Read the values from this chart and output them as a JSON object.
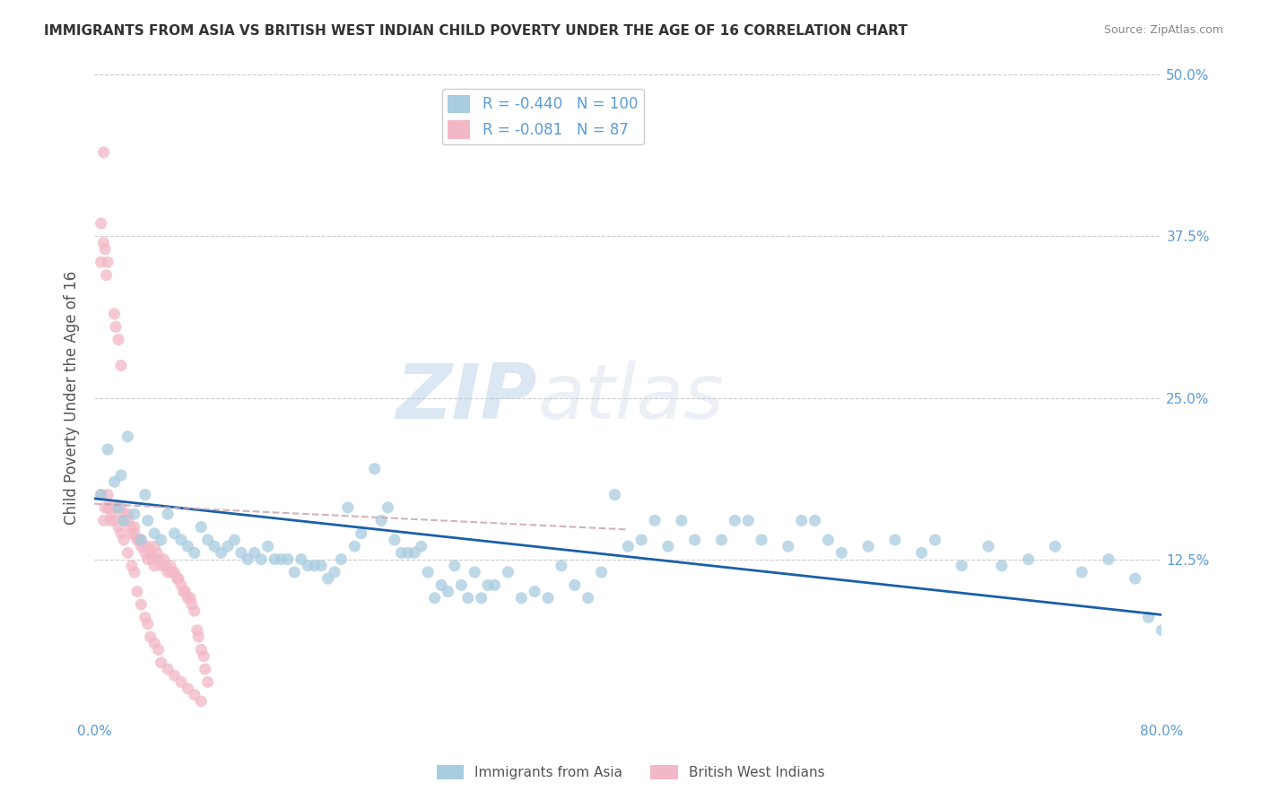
{
  "title": "IMMIGRANTS FROM ASIA VS BRITISH WEST INDIAN CHILD POVERTY UNDER THE AGE OF 16 CORRELATION CHART",
  "source": "Source: ZipAtlas.com",
  "ylabel": "Child Poverty Under the Age of 16",
  "xlim": [
    0,
    0.8
  ],
  "ylim": [
    0,
    0.5
  ],
  "xticks": [
    0.0,
    0.1,
    0.2,
    0.3,
    0.4,
    0.5,
    0.6,
    0.7,
    0.8
  ],
  "xticklabels": [
    "0.0%",
    "",
    "",
    "",
    "",
    "",
    "",
    "",
    "80.0%"
  ],
  "yticks": [
    0.0,
    0.125,
    0.25,
    0.375,
    0.5
  ],
  "yticklabels_right": [
    "",
    "12.5%",
    "25.0%",
    "37.5%",
    "50.0%"
  ],
  "blue_R": -0.44,
  "blue_N": 100,
  "pink_R": -0.081,
  "pink_N": 87,
  "blue_color": "#a8cce0",
  "pink_color": "#f2b8c6",
  "blue_line_color": "#1a5fa8",
  "pink_line_color": "#c8a0a8",
  "legend_label_blue": "Immigrants from Asia",
  "legend_label_pink": "British West Indians",
  "watermark_zip": "ZIP",
  "watermark_atlas": "atlas",
  "grid_color": "#cccccc",
  "title_color": "#333333",
  "axis_color": "#5b9bd5",
  "blue_line_start_y": 0.172,
  "blue_line_end_y": 0.082,
  "pink_line_start_y": 0.168,
  "pink_line_end_x": 0.4,
  "pink_line_end_y": 0.148,
  "blue_scatter_x": [
    0.005,
    0.01,
    0.015,
    0.018,
    0.02,
    0.022,
    0.025,
    0.03,
    0.035,
    0.038,
    0.04,
    0.045,
    0.05,
    0.055,
    0.06,
    0.065,
    0.07,
    0.075,
    0.08,
    0.085,
    0.09,
    0.095,
    0.1,
    0.105,
    0.11,
    0.115,
    0.12,
    0.125,
    0.13,
    0.135,
    0.14,
    0.145,
    0.15,
    0.155,
    0.16,
    0.165,
    0.17,
    0.175,
    0.18,
    0.185,
    0.19,
    0.195,
    0.2,
    0.21,
    0.215,
    0.22,
    0.225,
    0.23,
    0.235,
    0.24,
    0.245,
    0.25,
    0.255,
    0.26,
    0.265,
    0.27,
    0.275,
    0.28,
    0.285,
    0.29,
    0.295,
    0.3,
    0.31,
    0.32,
    0.33,
    0.34,
    0.35,
    0.36,
    0.37,
    0.38,
    0.39,
    0.4,
    0.41,
    0.42,
    0.43,
    0.44,
    0.45,
    0.47,
    0.48,
    0.49,
    0.5,
    0.52,
    0.53,
    0.54,
    0.55,
    0.56,
    0.58,
    0.6,
    0.62,
    0.63,
    0.65,
    0.67,
    0.68,
    0.7,
    0.72,
    0.74,
    0.76,
    0.78,
    0.79,
    0.8
  ],
  "blue_scatter_y": [
    0.175,
    0.21,
    0.185,
    0.165,
    0.19,
    0.155,
    0.22,
    0.16,
    0.14,
    0.175,
    0.155,
    0.145,
    0.14,
    0.16,
    0.145,
    0.14,
    0.135,
    0.13,
    0.15,
    0.14,
    0.135,
    0.13,
    0.135,
    0.14,
    0.13,
    0.125,
    0.13,
    0.125,
    0.135,
    0.125,
    0.125,
    0.125,
    0.115,
    0.125,
    0.12,
    0.12,
    0.12,
    0.11,
    0.115,
    0.125,
    0.165,
    0.135,
    0.145,
    0.195,
    0.155,
    0.165,
    0.14,
    0.13,
    0.13,
    0.13,
    0.135,
    0.115,
    0.095,
    0.105,
    0.1,
    0.12,
    0.105,
    0.095,
    0.115,
    0.095,
    0.105,
    0.105,
    0.115,
    0.095,
    0.1,
    0.095,
    0.12,
    0.105,
    0.095,
    0.115,
    0.175,
    0.135,
    0.14,
    0.155,
    0.135,
    0.155,
    0.14,
    0.14,
    0.155,
    0.155,
    0.14,
    0.135,
    0.155,
    0.155,
    0.14,
    0.13,
    0.135,
    0.14,
    0.13,
    0.14,
    0.12,
    0.135,
    0.12,
    0.125,
    0.135,
    0.115,
    0.125,
    0.11,
    0.08,
    0.07
  ],
  "pink_scatter_x": [
    0.005,
    0.005,
    0.005,
    0.007,
    0.007,
    0.008,
    0.009,
    0.01,
    0.01,
    0.012,
    0.013,
    0.015,
    0.015,
    0.016,
    0.018,
    0.018,
    0.02,
    0.02,
    0.022,
    0.022,
    0.025,
    0.025,
    0.027,
    0.028,
    0.03,
    0.03,
    0.032,
    0.033,
    0.035,
    0.035,
    0.037,
    0.038,
    0.04,
    0.04,
    0.042,
    0.043,
    0.045,
    0.045,
    0.047,
    0.048,
    0.05,
    0.052,
    0.053,
    0.055,
    0.057,
    0.058,
    0.06,
    0.062,
    0.063,
    0.065,
    0.067,
    0.068,
    0.07,
    0.072,
    0.073,
    0.075,
    0.077,
    0.078,
    0.08,
    0.082,
    0.083,
    0.085,
    0.007,
    0.008,
    0.01,
    0.012,
    0.015,
    0.018,
    0.02,
    0.022,
    0.025,
    0.028,
    0.03,
    0.032,
    0.035,
    0.038,
    0.04,
    0.042,
    0.045,
    0.048,
    0.05,
    0.055,
    0.06,
    0.065,
    0.07,
    0.075,
    0.08
  ],
  "pink_scatter_y": [
    0.385,
    0.355,
    0.175,
    0.37,
    0.155,
    0.365,
    0.345,
    0.355,
    0.165,
    0.165,
    0.16,
    0.315,
    0.165,
    0.305,
    0.165,
    0.295,
    0.165,
    0.275,
    0.16,
    0.155,
    0.16,
    0.155,
    0.15,
    0.145,
    0.15,
    0.145,
    0.14,
    0.14,
    0.14,
    0.135,
    0.135,
    0.13,
    0.135,
    0.125,
    0.13,
    0.125,
    0.12,
    0.135,
    0.13,
    0.125,
    0.12,
    0.125,
    0.12,
    0.115,
    0.12,
    0.115,
    0.115,
    0.11,
    0.11,
    0.105,
    0.1,
    0.1,
    0.095,
    0.095,
    0.09,
    0.085,
    0.07,
    0.065,
    0.055,
    0.05,
    0.04,
    0.03,
    0.44,
    0.165,
    0.175,
    0.155,
    0.155,
    0.15,
    0.145,
    0.14,
    0.13,
    0.12,
    0.115,
    0.1,
    0.09,
    0.08,
    0.075,
    0.065,
    0.06,
    0.055,
    0.045,
    0.04,
    0.035,
    0.03,
    0.025,
    0.02,
    0.015
  ]
}
